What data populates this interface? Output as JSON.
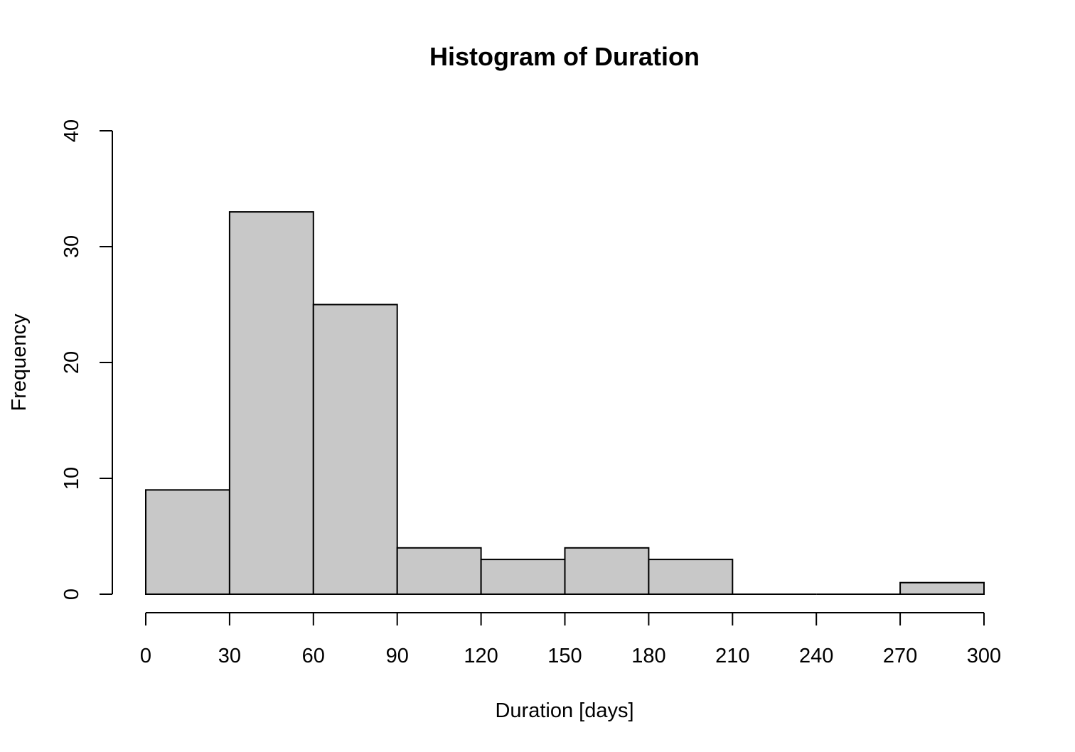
{
  "chart_data": {
    "type": "bar",
    "title": "Histogram of Duration",
    "xlabel": "Duration [days]",
    "ylabel": "Frequency",
    "bins": [
      {
        "start": 0,
        "end": 30,
        "count": 9
      },
      {
        "start": 30,
        "end": 60,
        "count": 33
      },
      {
        "start": 60,
        "end": 90,
        "count": 25
      },
      {
        "start": 90,
        "end": 120,
        "count": 4
      },
      {
        "start": 120,
        "end": 150,
        "count": 3
      },
      {
        "start": 150,
        "end": 180,
        "count": 4
      },
      {
        "start": 180,
        "end": 210,
        "count": 3
      },
      {
        "start": 210,
        "end": 240,
        "count": 0
      },
      {
        "start": 240,
        "end": 270,
        "count": 0
      },
      {
        "start": 270,
        "end": 300,
        "count": 1
      }
    ],
    "xlim": [
      0,
      300
    ],
    "ylim": [
      0,
      40
    ],
    "x_ticks": [
      0,
      30,
      60,
      90,
      120,
      150,
      180,
      210,
      240,
      270,
      300
    ],
    "y_ticks": [
      0,
      10,
      20,
      30,
      40
    ],
    "grid": false,
    "colors": {
      "bar_fill": "#c8c8c8",
      "bar_stroke": "#000000"
    }
  }
}
